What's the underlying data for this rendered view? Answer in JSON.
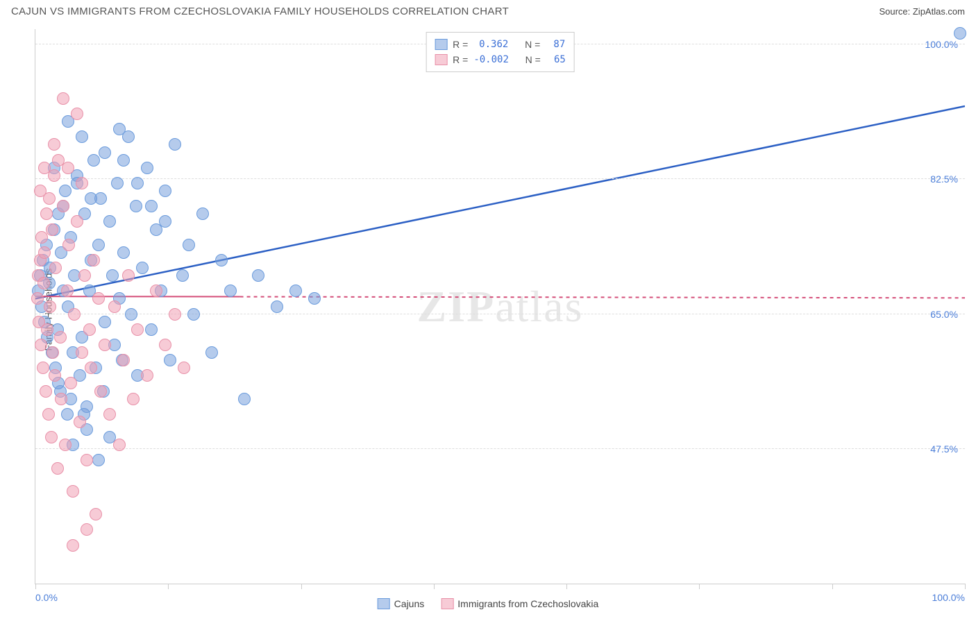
{
  "header": {
    "title": "CAJUN VS IMMIGRANTS FROM CZECHOSLOVAKIA FAMILY HOUSEHOLDS CORRELATION CHART",
    "source_prefix": "Source: ",
    "source_name": "ZipAtlas.com"
  },
  "chart": {
    "type": "scatter",
    "ylabel": "Family Households",
    "background_color": "#ffffff",
    "grid_color": "#dddddd",
    "axis_color": "#cccccc",
    "label_color": "#4a7dd8",
    "xlim": [
      0,
      100
    ],
    "ylim": [
      30,
      102
    ],
    "x_ticks": [
      0,
      14.3,
      28.6,
      42.9,
      57.1,
      71.4,
      85.7,
      100
    ],
    "x_tick_labels_shown": {
      "0": "0.0%",
      "100": "100.0%"
    },
    "y_gridlines": [
      47.5,
      65.0,
      82.5,
      100.0
    ],
    "y_tick_labels": {
      "47.5": "47.5%",
      "65.0": "65.0%",
      "82.5": "82.5%",
      "100.0": "100.0%"
    },
    "watermark": "ZIPatlas",
    "series": [
      {
        "name": "Cajuns",
        "color_fill": "rgba(120,160,220,0.55)",
        "color_stroke": "#6a9bdc",
        "trend_color": "#2b5fc4",
        "trend_dash": "none",
        "trend": {
          "x1": 0,
          "y1": 67.0,
          "x2": 100,
          "y2": 92.0
        },
        "R": "0.362",
        "N": "87",
        "points": [
          [
            0.3,
            68
          ],
          [
            0.5,
            70
          ],
          [
            0.7,
            66
          ],
          [
            0.8,
            72
          ],
          [
            1.0,
            64
          ],
          [
            1.2,
            74
          ],
          [
            1.3,
            62
          ],
          [
            1.5,
            69
          ],
          [
            1.6,
            71
          ],
          [
            1.8,
            60
          ],
          [
            2.0,
            76
          ],
          [
            2.2,
            58
          ],
          [
            2.4,
            63
          ],
          [
            2.5,
            78
          ],
          [
            2.7,
            55
          ],
          [
            2.8,
            73
          ],
          [
            3.0,
            68
          ],
          [
            3.2,
            81
          ],
          [
            3.4,
            52
          ],
          [
            3.5,
            66
          ],
          [
            3.8,
            75
          ],
          [
            4.0,
            60
          ],
          [
            4.2,
            70
          ],
          [
            4.5,
            83
          ],
          [
            4.8,
            57
          ],
          [
            5.0,
            62
          ],
          [
            5.3,
            78
          ],
          [
            5.5,
            53
          ],
          [
            5.8,
            68
          ],
          [
            6.0,
            72
          ],
          [
            6.3,
            85
          ],
          [
            6.5,
            58
          ],
          [
            6.8,
            74
          ],
          [
            7.0,
            80
          ],
          [
            7.3,
            55
          ],
          [
            7.5,
            64
          ],
          [
            8.0,
            77
          ],
          [
            8.3,
            70
          ],
          [
            8.5,
            61
          ],
          [
            8.8,
            82
          ],
          [
            9.0,
            67
          ],
          [
            9.3,
            59
          ],
          [
            9.5,
            73
          ],
          [
            10.0,
            88
          ],
          [
            10.3,
            65
          ],
          [
            10.8,
            79
          ],
          [
            11.0,
            57
          ],
          [
            11.5,
            71
          ],
          [
            12.0,
            84
          ],
          [
            12.5,
            63
          ],
          [
            13.0,
            76
          ],
          [
            13.5,
            68
          ],
          [
            14.0,
            81
          ],
          [
            14.5,
            59
          ],
          [
            15.0,
            87
          ],
          [
            15.8,
            70
          ],
          [
            16.5,
            74
          ],
          [
            17.0,
            65
          ],
          [
            18.0,
            78
          ],
          [
            19.0,
            60
          ],
          [
            20.0,
            72
          ],
          [
            21.0,
            68
          ],
          [
            22.5,
            54
          ],
          [
            24.0,
            70
          ],
          [
            26.0,
            66
          ],
          [
            28.0,
            68
          ],
          [
            30.0,
            67
          ],
          [
            99.5,
            101.5
          ],
          [
            4.0,
            48
          ],
          [
            5.5,
            50
          ],
          [
            6.8,
            46
          ],
          [
            8.0,
            49
          ],
          [
            3.5,
            90
          ],
          [
            5.0,
            88
          ],
          [
            7.5,
            86
          ],
          [
            9.0,
            89
          ],
          [
            2.0,
            84
          ],
          [
            3.0,
            79
          ],
          [
            4.5,
            82
          ],
          [
            6.0,
            80
          ],
          [
            11.0,
            82
          ],
          [
            12.5,
            79
          ],
          [
            14.0,
            77
          ],
          [
            9.5,
            85
          ],
          [
            2.5,
            56
          ],
          [
            3.8,
            54
          ],
          [
            5.2,
            52
          ]
        ]
      },
      {
        "name": "Immigrants from Czechoslovakia",
        "color_fill": "rgba(240,160,180,0.55)",
        "color_stroke": "#e890a8",
        "trend_color": "#d44d78",
        "trend_dash": "5,5",
        "trend_solid_end": 22,
        "trend": {
          "x1": 0,
          "y1": 67.3,
          "x2": 100,
          "y2": 67.1
        },
        "R": "-0.002",
        "N": "65",
        "points": [
          [
            0.2,
            67
          ],
          [
            0.3,
            70
          ],
          [
            0.4,
            64
          ],
          [
            0.5,
            72
          ],
          [
            0.6,
            61
          ],
          [
            0.7,
            75
          ],
          [
            0.8,
            58
          ],
          [
            0.9,
            69
          ],
          [
            1.0,
            73
          ],
          [
            1.1,
            55
          ],
          [
            1.2,
            78
          ],
          [
            1.3,
            63
          ],
          [
            1.4,
            52
          ],
          [
            1.5,
            80
          ],
          [
            1.6,
            66
          ],
          [
            1.7,
            49
          ],
          [
            1.8,
            76
          ],
          [
            1.9,
            60
          ],
          [
            2.0,
            83
          ],
          [
            2.1,
            57
          ],
          [
            2.2,
            71
          ],
          [
            2.4,
            45
          ],
          [
            2.5,
            85
          ],
          [
            2.7,
            62
          ],
          [
            2.8,
            54
          ],
          [
            3.0,
            79
          ],
          [
            3.2,
            48
          ],
          [
            3.4,
            68
          ],
          [
            3.6,
            74
          ],
          [
            3.8,
            56
          ],
          [
            4.0,
            42
          ],
          [
            4.2,
            65
          ],
          [
            4.5,
            77
          ],
          [
            4.8,
            51
          ],
          [
            5.0,
            60
          ],
          [
            5.3,
            70
          ],
          [
            5.5,
            46
          ],
          [
            5.8,
            63
          ],
          [
            6.0,
            58
          ],
          [
            6.3,
            72
          ],
          [
            6.5,
            39
          ],
          [
            6.8,
            67
          ],
          [
            7.0,
            55
          ],
          [
            7.5,
            61
          ],
          [
            8.0,
            52
          ],
          [
            8.5,
            66
          ],
          [
            9.0,
            48
          ],
          [
            9.5,
            59
          ],
          [
            10.0,
            70
          ],
          [
            10.5,
            54
          ],
          [
            11.0,
            63
          ],
          [
            12.0,
            57
          ],
          [
            13.0,
            68
          ],
          [
            14.0,
            61
          ],
          [
            15.0,
            65
          ],
          [
            16.0,
            58
          ],
          [
            4.0,
            35
          ],
          [
            5.5,
            37
          ],
          [
            3.0,
            93
          ],
          [
            4.5,
            91
          ],
          [
            2.0,
            87
          ],
          [
            3.5,
            84
          ],
          [
            5.0,
            82
          ],
          [
            0.5,
            81
          ],
          [
            1.0,
            84
          ]
        ]
      }
    ]
  },
  "legend_top": {
    "r_label": "R =",
    "n_label": "N ="
  },
  "legend_bottom": {
    "items": [
      "Cajuns",
      "Immigrants from Czechoslovakia"
    ]
  }
}
